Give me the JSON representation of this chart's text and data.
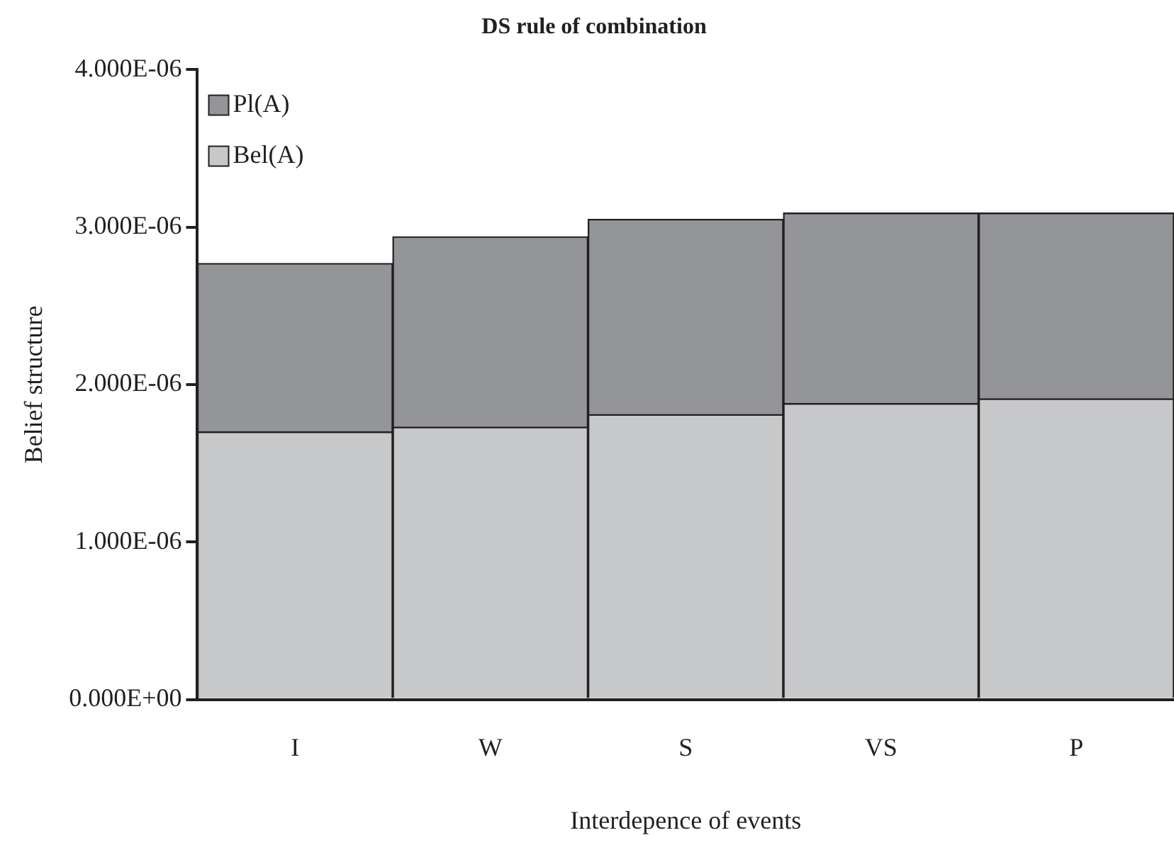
{
  "chart_data": {
    "type": "bar",
    "title": "DS rule of combination",
    "xlabel": "Interdepence of events",
    "ylabel": "Belief structure",
    "categories": [
      "I",
      "W",
      "S",
      "VS",
      "P"
    ],
    "stacked": true,
    "series": [
      {
        "name": "Bel(A)",
        "color": "#c7c8ca",
        "values": [
          1.7e-06,
          1.73e-06,
          1.81e-06,
          1.88e-06,
          1.91e-06
        ]
      },
      {
        "name": "Pl(A)",
        "color": "#939598",
        "values": [
          1.07e-06,
          1.21e-06,
          1.24e-06,
          1.21e-06,
          1.18e-06
        ]
      }
    ],
    "ylim": [
      0,
      4e-06
    ],
    "yticks": [
      {
        "value": 0,
        "label": "0.000E+00"
      },
      {
        "value": 1e-06,
        "label": "1.000E-06"
      },
      {
        "value": 2e-06,
        "label": "2.000E-06"
      },
      {
        "value": 3e-06,
        "label": "3.000E-06"
      },
      {
        "value": 4e-06,
        "label": "4.000E-06"
      }
    ],
    "grid": false,
    "legend": "top left"
  }
}
